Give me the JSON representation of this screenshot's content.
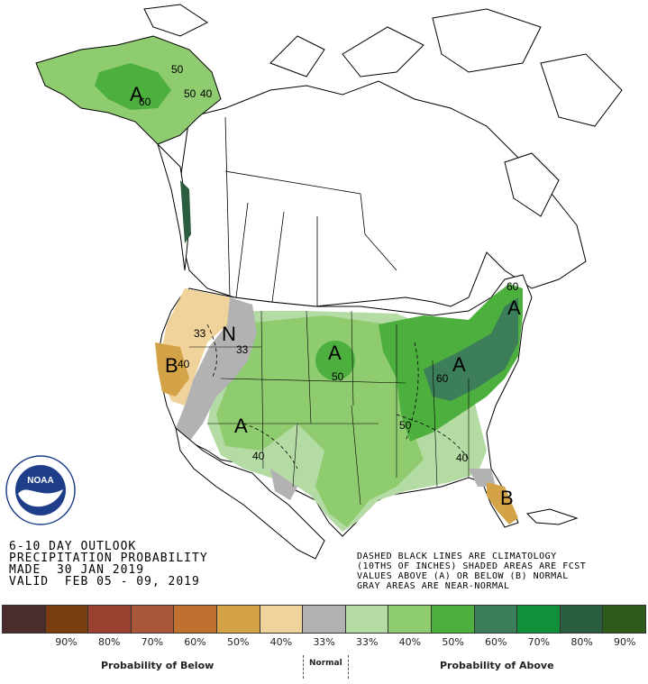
{
  "title_block": {
    "line1": "6-10 DAY OUTLOOK",
    "line2": "PRECIPITATION PROBABILITY",
    "line3": "MADE  30 JAN 2019",
    "line4": "VALID  FEB 05 - 09, 2019"
  },
  "note": {
    "line1": "DASHED BLACK LINES ARE CLIMATOLOGY",
    "line2": "(10THS OF INCHES) SHADED AREAS ARE FCST",
    "line3": "VALUES ABOVE (A) OR BELOW (B) NORMAL",
    "line4": "GRAY AREAS ARE NEAR-NORMAL"
  },
  "logo": {
    "text": "NOAA"
  },
  "map_labels": {
    "ak_50a": "50",
    "ak_50b": "50",
    "ak_40": "40",
    "ak_60": "60",
    "ak_A": "A",
    "nw_33a": "33",
    "nw_33b": "33",
    "nw_N": "N",
    "nw_B": "B",
    "nw_40": "40",
    "sw_A": "A",
    "sw_40": "40",
    "np_A": "A",
    "np_50": "50",
    "ne_A1": "A",
    "ne_A2": "A",
    "ne_60a": "60",
    "ne_60b": "60",
    "ne_50": "50",
    "se_40": "40",
    "fl_B": "B"
  },
  "legend": {
    "colors": [
      "#4a2c2c",
      "#7a3e0e",
      "#994030",
      "#a8563a",
      "#c1712f",
      "#d4a347",
      "#efd39a",
      "#b2b2b2",
      "#b5dba4",
      "#8fcb6f",
      "#4daf3e",
      "#3c7d5a",
      "#11903c",
      "#2b5d3f",
      "#2e5a1c"
    ],
    "below_pcts": [
      "90%",
      "80%",
      "70%",
      "60%",
      "50%",
      "40%",
      "33%"
    ],
    "above_pcts": [
      "33%",
      "40%",
      "50%",
      "60%",
      "70%",
      "80%",
      "90%"
    ],
    "below_caption": "Probability of Below",
    "normal_caption": "Normal",
    "above_caption": "Probability of Above"
  }
}
